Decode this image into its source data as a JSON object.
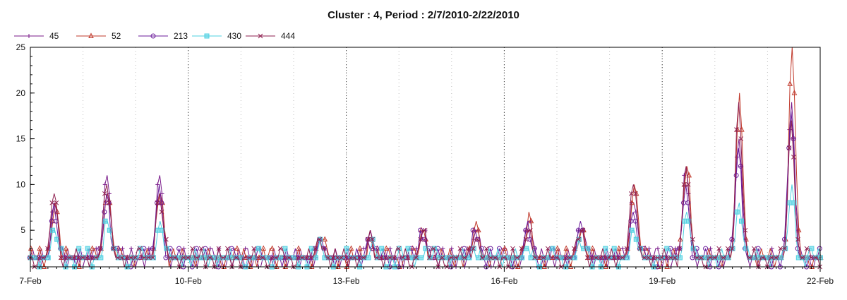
{
  "chart_data": {
    "type": "line",
    "title": "Cluster : 4, Period : 2/7/2010-2/22/2010",
    "xlabel": "",
    "ylabel": "",
    "x_range": [
      "7-Feb",
      "22-Feb"
    ],
    "x_ticks": [
      "7-Feb",
      "10-Feb",
      "13-Feb",
      "16-Feb",
      "19-Feb",
      "22-Feb"
    ],
    "ylim": [
      1,
      25
    ],
    "y_ticks": [
      5,
      10,
      15,
      20,
      25
    ],
    "grid": "vertical dotted at x ticks",
    "legend_position": "top-left",
    "series": [
      {
        "name": "45",
        "color": "#7a1a8a",
        "marker": "plus",
        "peaks": [
          [
            "7-Feb 11:00",
            9
          ],
          [
            "8-Feb 11:00",
            12
          ],
          [
            "9-Feb 11:00",
            11
          ],
          [
            "12-Feb 12:00",
            4
          ],
          [
            "13-Feb 11:00",
            5
          ],
          [
            "14-Feb 11:00",
            5
          ],
          [
            "15-Feb 11:00",
            5
          ],
          [
            "16-Feb 11:00",
            6
          ],
          [
            "17-Feb 11:00",
            6
          ],
          [
            "18-Feb 11:00",
            9
          ],
          [
            "19-Feb 11:00",
            12
          ],
          [
            "20-Feb 11:00",
            15
          ],
          [
            "21-Feb 11:00",
            19
          ]
        ]
      },
      {
        "name": "52",
        "color": "#c0392b",
        "marker": "triangle",
        "peaks": [
          [
            "7-Feb 11:00",
            8
          ],
          [
            "8-Feb 11:00",
            10
          ],
          [
            "9-Feb 11:00",
            10
          ],
          [
            "12-Feb 12:00",
            4
          ],
          [
            "13-Feb 11:00",
            4
          ],
          [
            "14-Feb 11:00",
            5
          ],
          [
            "15-Feb 11:00",
            5
          ],
          [
            "16-Feb 11:00",
            6
          ],
          [
            "17-Feb 11:00",
            5
          ],
          [
            "18-Feb 11:00",
            11
          ],
          [
            "19-Feb 11:00",
            13
          ],
          [
            "20-Feb 11:00",
            20
          ],
          [
            "21-Feb 11:00",
            25
          ]
        ]
      },
      {
        "name": "213",
        "color": "#6a1b9a",
        "marker": "circle",
        "peaks": [
          [
            "7-Feb 11:00",
            7
          ],
          [
            "8-Feb 11:00",
            9
          ],
          [
            "9-Feb 11:00",
            10
          ],
          [
            "12-Feb 12:00",
            4
          ],
          [
            "13-Feb 11:00",
            4
          ],
          [
            "14-Feb 11:00",
            5
          ],
          [
            "15-Feb 11:00",
            5
          ],
          [
            "16-Feb 11:00",
            5
          ],
          [
            "17-Feb 11:00",
            5
          ],
          [
            "18-Feb 11:00",
            7
          ],
          [
            "19-Feb 11:00",
            10
          ],
          [
            "20-Feb 11:00",
            14
          ],
          [
            "21-Feb 11:00",
            18
          ]
        ]
      },
      {
        "name": "430",
        "color": "#4dd0e1",
        "marker": "square",
        "peaks": [
          [
            "7-Feb 11:00",
            5
          ],
          [
            "8-Feb 11:00",
            6
          ],
          [
            "9-Feb 11:00",
            6
          ],
          [
            "12-Feb 12:00",
            3
          ],
          [
            "13-Feb 11:00",
            3
          ],
          [
            "14-Feb 11:00",
            3
          ],
          [
            "15-Feb 11:00",
            3
          ],
          [
            "16-Feb 11:00",
            3
          ],
          [
            "17-Feb 11:00",
            3
          ],
          [
            "18-Feb 11:00",
            5
          ],
          [
            "19-Feb 11:00",
            7
          ],
          [
            "20-Feb 11:00",
            8
          ],
          [
            "21-Feb 11:00",
            10
          ]
        ]
      },
      {
        "name": "444",
        "color": "#8e1f4f",
        "marker": "x",
        "peaks": [
          [
            "7-Feb 11:00",
            9
          ],
          [
            "8-Feb 11:00",
            10
          ],
          [
            "9-Feb 11:00",
            9
          ],
          [
            "12-Feb 12:00",
            4
          ],
          [
            "13-Feb 11:00",
            4
          ],
          [
            "14-Feb 11:00",
            5
          ],
          [
            "15-Feb 11:00",
            4
          ],
          [
            "16-Feb 11:00",
            5
          ],
          [
            "17-Feb 11:00",
            5
          ],
          [
            "18-Feb 11:00",
            10
          ],
          [
            "19-Feb 11:00",
            12
          ],
          [
            "20-Feb 11:00",
            19
          ],
          [
            "21-Feb 11:00",
            17
          ]
        ]
      }
    ]
  }
}
